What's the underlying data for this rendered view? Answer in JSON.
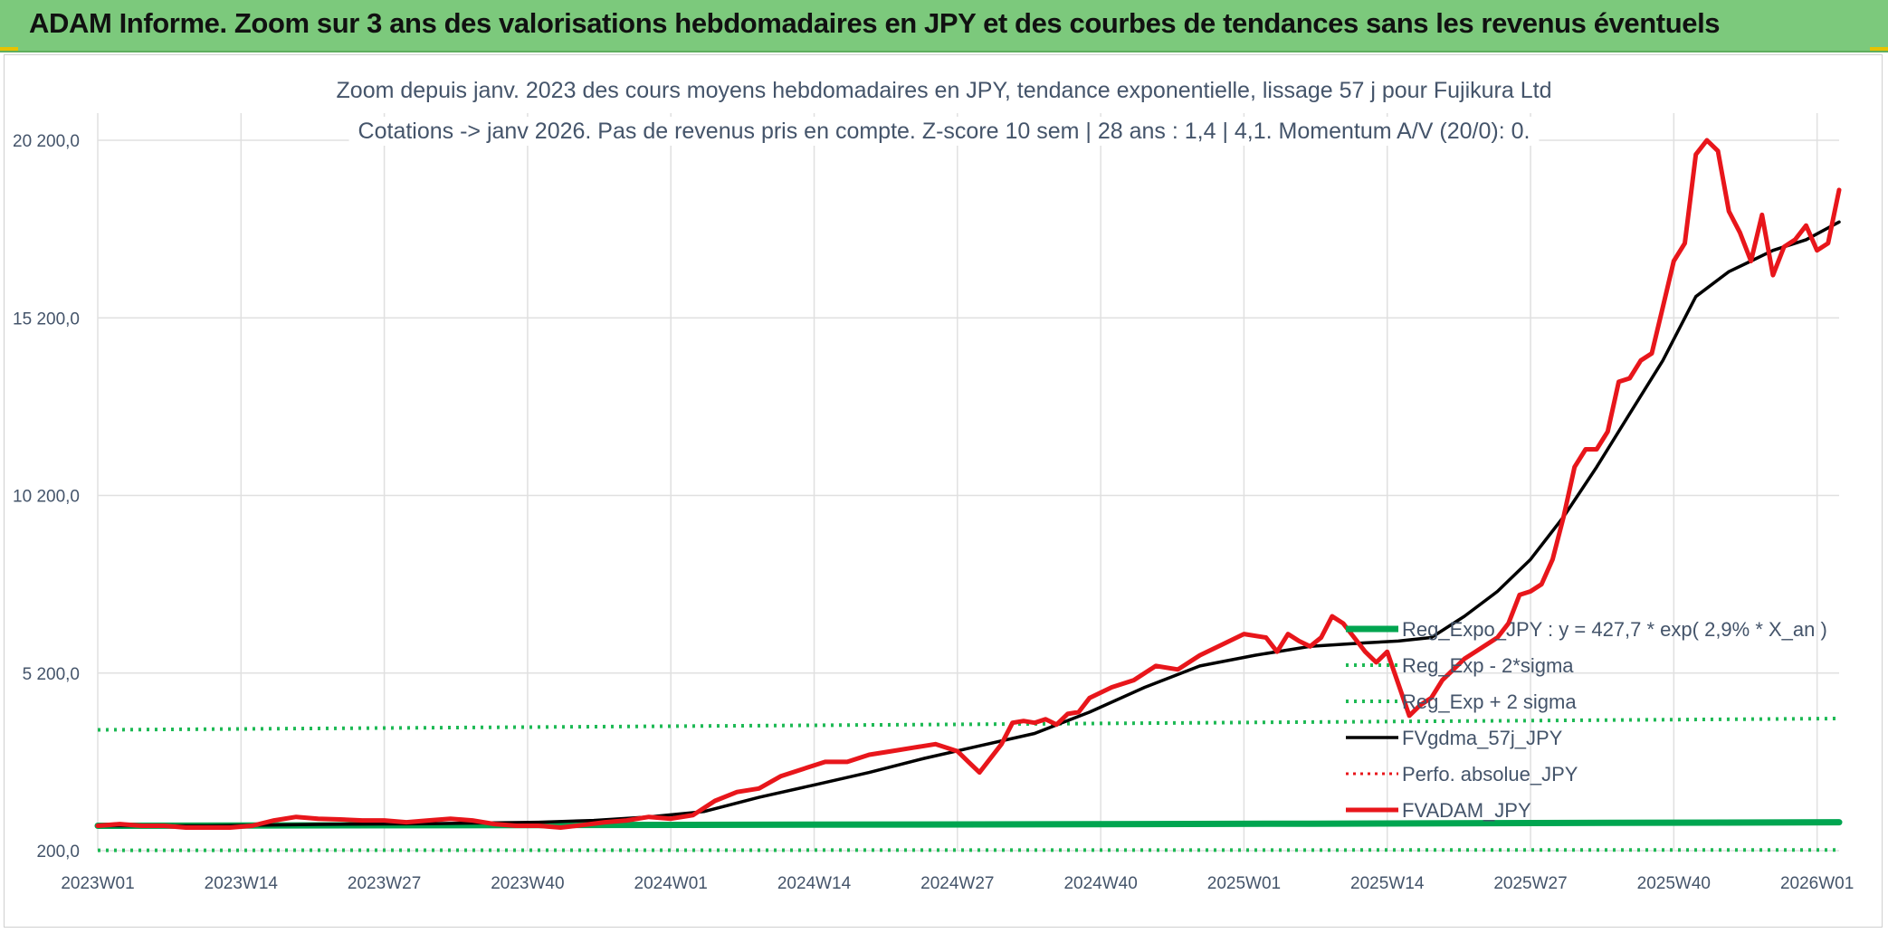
{
  "banner": {
    "title": "ADAM Informe. Zoom sur 3 ans des valorisations hebdomadaires en JPY et des courbes de tendances sans les revenus éventuels"
  },
  "colors": {
    "banner_bg": "#7cc97c",
    "red_series": "#e8161b",
    "black_series": "#000000",
    "green_regression": "#00a550",
    "green_dotted": "#1db954",
    "red_dotted": "#e8161b",
    "grid": "#e0e0e0",
    "text": "#44546a"
  },
  "chart_data": {
    "type": "line",
    "title": "Zoom depuis janv. 2023 des cours moyens hebdomadaires en JPY, tendance exponentielle, lissage 57 j pour Fujikura Ltd",
    "subtitle": "Cotations -> janv 2026. Pas de revenus pris en compte. Z-score 10 sem | 28 ans : 1,4  | 4,1. Momentum A/V (20/0): 0.",
    "xlabel": "",
    "ylabel": "",
    "ylim": [
      200,
      20200
    ],
    "yticks": [
      200,
      5200,
      10200,
      15200,
      20200
    ],
    "ytick_labels": [
      "200,0",
      "5 200,0",
      "10 200,0",
      "15 200,0",
      "20 200,0"
    ],
    "x_range_weeks": [
      0,
      158
    ],
    "xtick_positions": [
      0,
      13,
      26,
      39,
      52,
      65,
      78,
      91,
      104,
      117,
      130,
      143,
      156
    ],
    "xtick_labels": [
      "2023W01",
      "2023W14",
      "2023W27",
      "2023W40",
      "2024W01",
      "2024W14",
      "2024W27",
      "2024W40",
      "2025W01",
      "2025W14",
      "2025W27",
      "2025W40",
      "2026W01"
    ],
    "grid": true,
    "legend_position": "right, lower-middle",
    "series": [
      {
        "name": "Reg_Expo_JPY : y = 427,7 * exp( 2,9% *  X_an )",
        "style": "thick-solid-green",
        "x": [
          0,
          40,
          80,
          110,
          158
        ],
        "y": [
          900,
          920,
          940,
          960,
          1000
        ]
      },
      {
        "name": "Reg_Exp - 2*sigma",
        "style": "dotted-green",
        "x": [
          0,
          158
        ],
        "y": [
          210,
          220
        ]
      },
      {
        "name": "Reg_Exp + 2 sigma",
        "style": "dotted-green",
        "x": [
          0,
          40,
          80,
          120,
          158
        ],
        "y": [
          3600,
          3680,
          3760,
          3840,
          3920
        ]
      },
      {
        "name": "FVgdma_57j_JPY",
        "style": "solid-black",
        "x": [
          0,
          10,
          20,
          30,
          40,
          45,
          50,
          55,
          60,
          65,
          70,
          75,
          80,
          85,
          90,
          95,
          100,
          105,
          110,
          115,
          118,
          121,
          124,
          127,
          130,
          133,
          136,
          139,
          142,
          145,
          148,
          150,
          152,
          155,
          158
        ],
        "y": [
          900,
          900,
          940,
          960,
          1000,
          1050,
          1150,
          1300,
          1700,
          2050,
          2400,
          2800,
          3150,
          3500,
          4100,
          4800,
          5400,
          5700,
          5950,
          6050,
          6100,
          6200,
          6800,
          7500,
          8400,
          9600,
          11000,
          12500,
          14000,
          15800,
          16500,
          16800,
          17100,
          17400,
          17900
        ]
      },
      {
        "name": "Perfo. absolue_JPY",
        "style": "dotted-red",
        "x": [],
        "y": []
      },
      {
        "name": "FVADAM_JPY",
        "style": "thick-solid-red",
        "x": [
          0,
          2,
          4,
          6,
          8,
          10,
          12,
          14,
          16,
          18,
          20,
          22,
          24,
          26,
          28,
          30,
          32,
          34,
          36,
          38,
          40,
          42,
          44,
          46,
          48,
          50,
          52,
          54,
          56,
          58,
          60,
          62,
          64,
          66,
          68,
          70,
          72,
          74,
          76,
          78,
          79,
          80,
          82,
          83,
          84,
          85,
          86,
          87,
          88,
          89,
          90,
          92,
          94,
          96,
          98,
          100,
          102,
          104,
          106,
          107,
          108,
          109,
          110,
          111,
          112,
          113,
          114,
          115,
          116,
          117,
          118,
          119,
          120,
          121,
          122,
          123,
          124,
          125,
          126,
          127,
          128,
          129,
          130,
          131,
          132,
          133,
          134,
          135,
          136,
          137,
          138,
          139,
          140,
          141,
          142,
          143,
          144,
          145,
          146,
          147,
          148,
          149,
          150,
          151,
          152,
          153,
          154,
          155,
          156,
          157,
          158
        ],
        "y": [
          900,
          950,
          900,
          900,
          850,
          850,
          850,
          900,
          1050,
          1150,
          1100,
          1080,
          1050,
          1050,
          1000,
          1050,
          1100,
          1050,
          950,
          900,
          900,
          850,
          920,
          1000,
          1050,
          1150,
          1100,
          1200,
          1600,
          1850,
          1950,
          2300,
          2500,
          2700,
          2700,
          2900,
          3000,
          3100,
          3200,
          3000,
          2700,
          2400,
          3200,
          3800,
          3850,
          3800,
          3900,
          3750,
          4050,
          4100,
          4500,
          4800,
          5000,
          5400,
          5300,
          5700,
          6000,
          6300,
          6200,
          5800,
          6300,
          6100,
          5950,
          6200,
          6800,
          6600,
          6200,
          5800,
          5500,
          5800,
          4900,
          4000,
          4300,
          4500,
          5000,
          5300,
          5600,
          5800,
          6000,
          6200,
          6600,
          7400,
          7500,
          7700,
          8400,
          9600,
          11000,
          11500,
          11500,
          12000,
          13400,
          13500,
          14000,
          14200,
          15500,
          16800,
          17300,
          19800,
          20200,
          19900,
          18200,
          17600,
          16800,
          18100,
          16400,
          17200,
          17400,
          17800,
          17100,
          17300,
          18800
        ]
      }
    ]
  }
}
